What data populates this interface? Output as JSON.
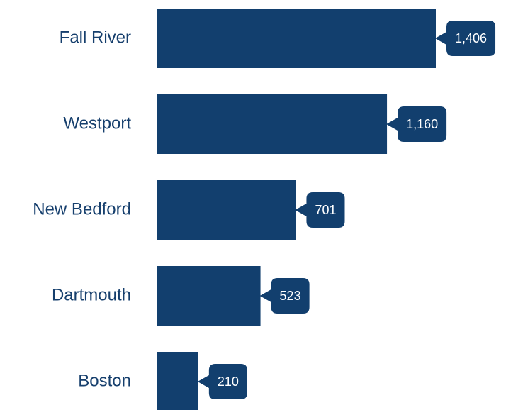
{
  "chart_data": {
    "type": "bar",
    "orientation": "horizontal",
    "categories": [
      "Fall River",
      "Westport",
      "New Bedford",
      "Dartmouth",
      "Boston"
    ],
    "values": [
      1406,
      1160,
      701,
      523,
      210
    ],
    "value_labels": [
      "1,406",
      "1,160",
      "701",
      "523",
      "210"
    ],
    "color": "#123f6e"
  }
}
